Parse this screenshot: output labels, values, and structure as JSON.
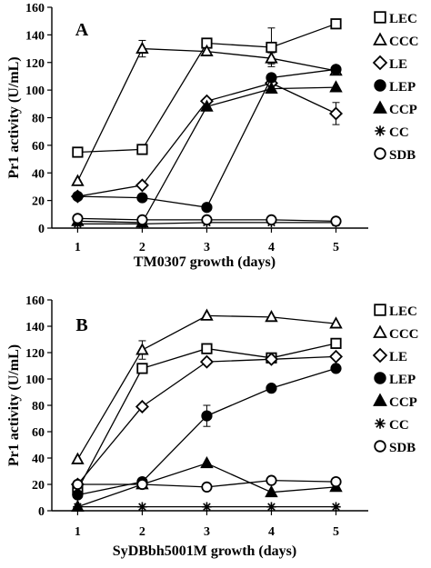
{
  "chart_data": [
    {
      "type": "line",
      "panel_label": "A",
      "xlabel": "TM0307 growth (days)",
      "ylabel": "Pr1 activity (U/mL)",
      "x": [
        1,
        2,
        3,
        4,
        5
      ],
      "xlim": [
        0.6,
        5.5
      ],
      "ylim": [
        0,
        160
      ],
      "yticks": [
        0,
        20,
        40,
        60,
        80,
        100,
        120,
        140,
        160
      ],
      "grid": false,
      "legend_position": "right",
      "series": [
        {
          "name": "LEC",
          "marker": "open-square",
          "values": [
            55,
            57,
            134,
            131,
            148
          ],
          "error": [
            0,
            0,
            0,
            14,
            0
          ]
        },
        {
          "name": "CCC",
          "marker": "open-triangle",
          "values": [
            34,
            130,
            128,
            123,
            114
          ],
          "error": [
            0,
            6,
            0,
            4,
            0
          ]
        },
        {
          "name": "LE",
          "marker": "open-diamond",
          "values": [
            23,
            31,
            92,
            105,
            83
          ],
          "error": [
            0,
            0,
            0,
            0,
            8
          ]
        },
        {
          "name": "LEP",
          "marker": "filled-circle",
          "values": [
            23,
            22,
            15,
            109,
            115
          ],
          "error": [
            0,
            0,
            0,
            0,
            0
          ]
        },
        {
          "name": "CCP",
          "marker": "filled-triangle",
          "values": [
            5,
            4,
            88,
            101,
            102
          ],
          "error": [
            0,
            0,
            0,
            0,
            0
          ]
        },
        {
          "name": "CC",
          "marker": "asterisk",
          "values": [
            3,
            3,
            4,
            4,
            4
          ],
          "error": [
            0,
            0,
            0,
            0,
            0
          ]
        },
        {
          "name": "SDB",
          "marker": "open-circle",
          "values": [
            7,
            6,
            6,
            6,
            5
          ],
          "error": [
            0,
            0,
            0,
            0,
            0
          ]
        }
      ]
    },
    {
      "type": "line",
      "panel_label": "B",
      "xlabel": "SyDBbh5001M growth (days)",
      "ylabel": "Pr1 activity (U/mL)",
      "x": [
        1,
        2,
        3,
        4,
        5
      ],
      "xlim": [
        0.6,
        5.5
      ],
      "ylim": [
        0,
        160
      ],
      "yticks": [
        0,
        20,
        40,
        60,
        80,
        100,
        120,
        140,
        160
      ],
      "grid": false,
      "legend_position": "right",
      "series": [
        {
          "name": "LEC",
          "marker": "open-square",
          "values": [
            16,
            108,
            123,
            116,
            127
          ],
          "error": [
            0,
            0,
            0,
            0,
            0
          ]
        },
        {
          "name": "CCC",
          "marker": "open-triangle",
          "values": [
            39,
            122,
            148,
            147,
            142
          ],
          "error": [
            0,
            7,
            0,
            0,
            0
          ]
        },
        {
          "name": "LE",
          "marker": "open-diamond",
          "values": [
            20,
            79,
            113,
            115,
            117
          ],
          "error": [
            0,
            0,
            0,
            0,
            0
          ]
        },
        {
          "name": "LEP",
          "marker": "filled-circle",
          "values": [
            12,
            22,
            72,
            93,
            108
          ],
          "error": [
            0,
            0,
            8,
            0,
            0
          ]
        },
        {
          "name": "CCP",
          "marker": "filled-triangle",
          "values": [
            3,
            20,
            36,
            14,
            18
          ],
          "error": [
            0,
            0,
            0,
            0,
            0
          ]
        },
        {
          "name": "CC",
          "marker": "asterisk",
          "values": [
            3,
            3,
            3,
            3,
            3
          ],
          "error": [
            0,
            0,
            0,
            0,
            0
          ]
        },
        {
          "name": "SDB",
          "marker": "open-circle",
          "values": [
            20,
            20,
            18,
            23,
            22
          ],
          "error": [
            0,
            0,
            0,
            0,
            0
          ]
        }
      ]
    }
  ]
}
